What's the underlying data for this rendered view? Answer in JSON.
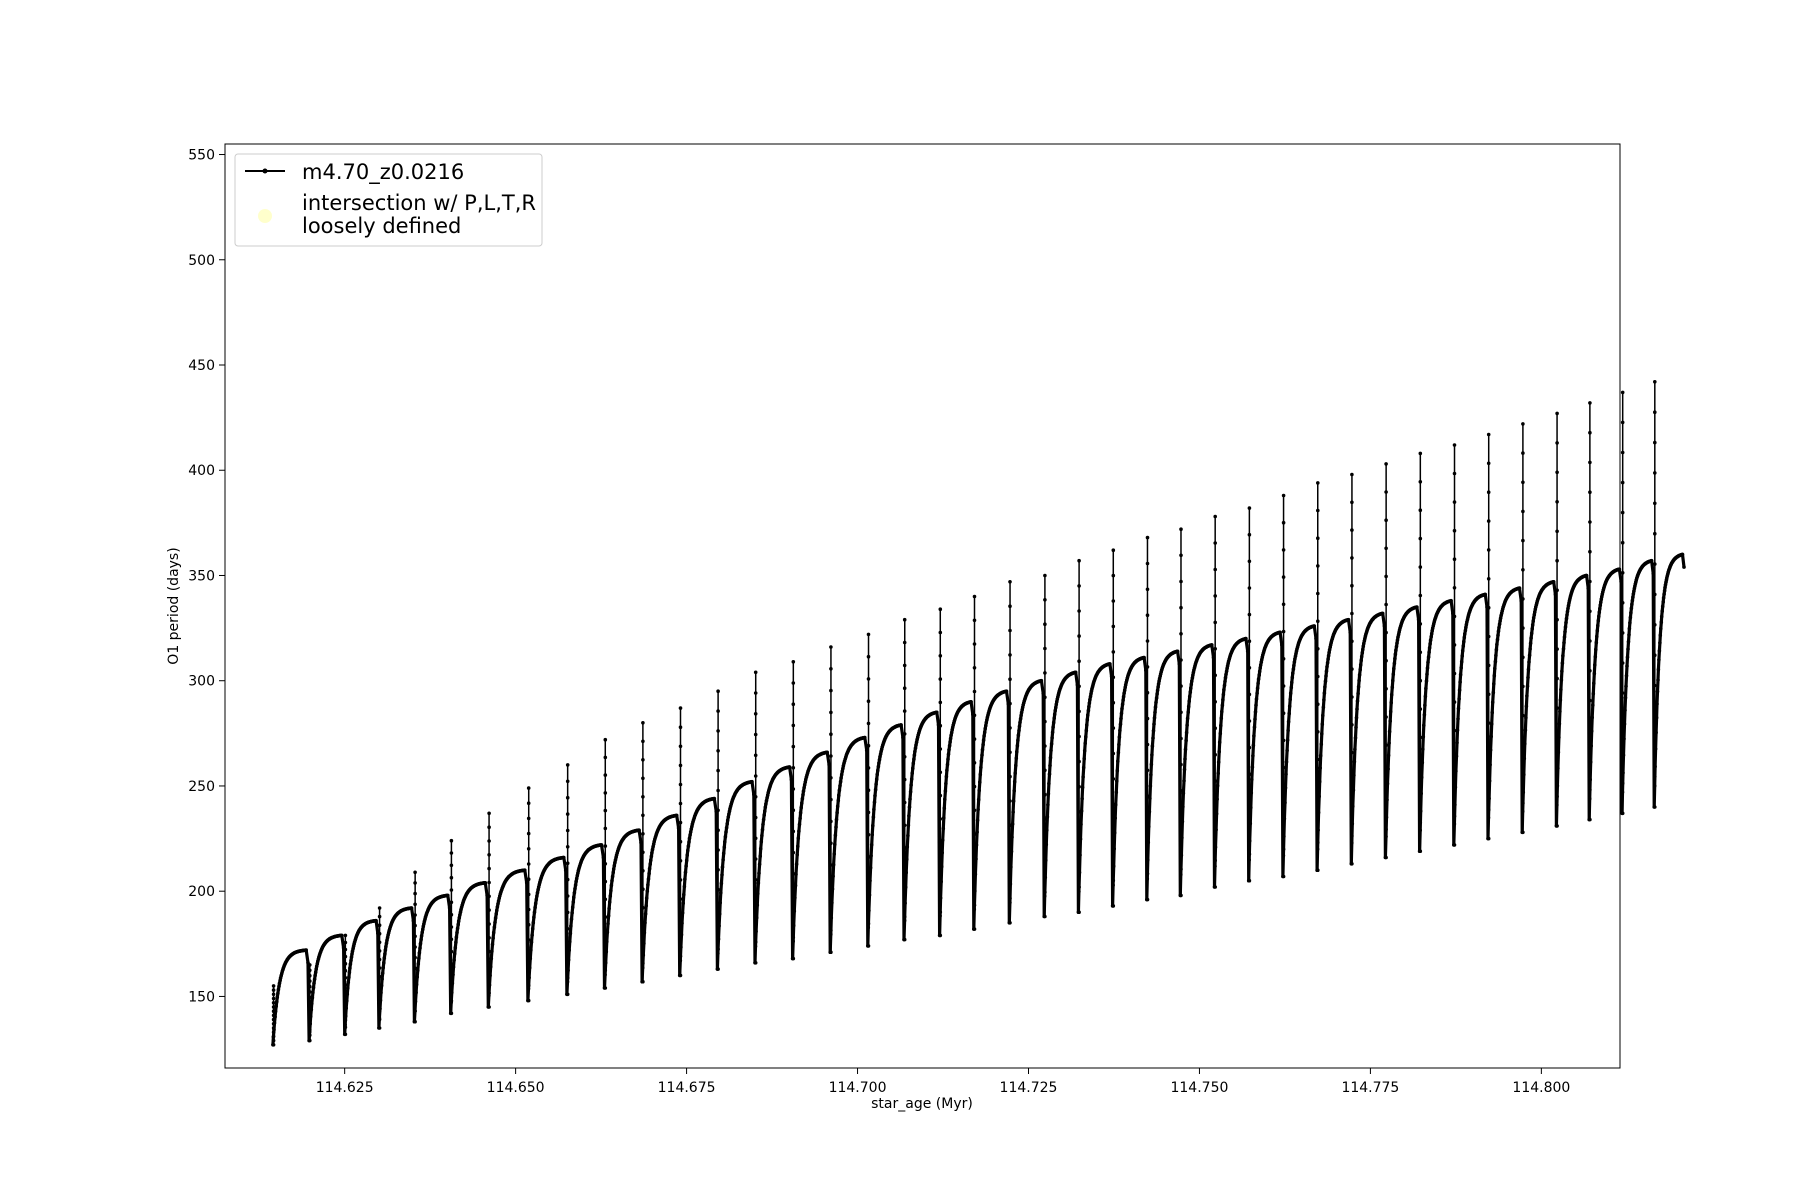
{
  "chart_data": {
    "type": "line",
    "title": "",
    "xlabel": "star_age (Myr)",
    "ylabel": "O1 period (days)",
    "xlim": [
      114.6075,
      114.8115
    ],
    "ylim": [
      116,
      555
    ],
    "x_ticks": [
      114.625,
      114.65,
      114.675,
      114.7,
      114.725,
      114.75,
      114.775,
      114.8
    ],
    "x_tick_labels": [
      "114.625",
      "114.650",
      "114.675",
      "114.700",
      "114.725",
      "114.750",
      "114.775",
      "114.800"
    ],
    "y_ticks": [
      150,
      200,
      250,
      300,
      350,
      400,
      450,
      500,
      550
    ],
    "y_tick_labels": [
      "150",
      "200",
      "250",
      "300",
      "350",
      "400",
      "450",
      "500",
      "550"
    ],
    "grid": false,
    "legend": {
      "placement": "upper-left",
      "entries": [
        {
          "label": "m4.70_z0.0216",
          "marker": "line-with-dots",
          "color": "#000000"
        },
        {
          "label_lines": [
            "intersection w/ P,L,T,R",
            "loosely defined"
          ],
          "marker": "circle",
          "color": "#ffffcc"
        }
      ]
    },
    "series": [
      {
        "name": "m4.70_z0.0216",
        "color": "#000000",
        "marker": "dot",
        "pulses": [
          {
            "t0": 114.6145,
            "t1": 114.6198,
            "min": 127,
            "max": 172,
            "spike": 155
          },
          {
            "t0": 114.6198,
            "t1": 114.625,
            "min": 129,
            "max": 179,
            "spike": 165
          },
          {
            "t0": 114.625,
            "t1": 114.63,
            "min": 132,
            "max": 186,
            "spike": 179
          },
          {
            "t0": 114.63,
            "t1": 114.6352,
            "min": 135,
            "max": 192,
            "spike": 192
          },
          {
            "t0": 114.6352,
            "t1": 114.6405,
            "min": 138,
            "max": 198,
            "spike": 209
          },
          {
            "t0": 114.6405,
            "t1": 114.646,
            "min": 142,
            "max": 204,
            "spike": 224
          },
          {
            "t0": 114.646,
            "t1": 114.6518,
            "min": 145,
            "max": 210,
            "spike": 237
          },
          {
            "t0": 114.6518,
            "t1": 114.6575,
            "min": 148,
            "max": 216,
            "spike": 249
          },
          {
            "t0": 114.6575,
            "t1": 114.663,
            "min": 151,
            "max": 222,
            "spike": 260
          },
          {
            "t0": 114.663,
            "t1": 114.6685,
            "min": 154,
            "max": 229,
            "spike": 272
          },
          {
            "t0": 114.6685,
            "t1": 114.674,
            "min": 157,
            "max": 236,
            "spike": 280
          },
          {
            "t0": 114.674,
            "t1": 114.6795,
            "min": 160,
            "max": 244,
            "spike": 287
          },
          {
            "t0": 114.6795,
            "t1": 114.685,
            "min": 163,
            "max": 252,
            "spike": 295
          },
          {
            "t0": 114.685,
            "t1": 114.6905,
            "min": 166,
            "max": 259,
            "spike": 304
          },
          {
            "t0": 114.6905,
            "t1": 114.696,
            "min": 168,
            "max": 266,
            "spike": 309
          },
          {
            "t0": 114.696,
            "t1": 114.7015,
            "min": 171,
            "max": 273,
            "spike": 316
          },
          {
            "t0": 114.7015,
            "t1": 114.7068,
            "min": 174,
            "max": 279,
            "spike": 322
          },
          {
            "t0": 114.7068,
            "t1": 114.712,
            "min": 177,
            "max": 285,
            "spike": 329
          },
          {
            "t0": 114.712,
            "t1": 114.717,
            "min": 179,
            "max": 290,
            "spike": 334
          },
          {
            "t0": 114.717,
            "t1": 114.7222,
            "min": 182,
            "max": 295,
            "spike": 340
          },
          {
            "t0": 114.7222,
            "t1": 114.7273,
            "min": 185,
            "max": 300,
            "spike": 347
          },
          {
            "t0": 114.7273,
            "t1": 114.7323,
            "min": 188,
            "max": 304,
            "spike": 350
          },
          {
            "t0": 114.7323,
            "t1": 114.7373,
            "min": 190,
            "max": 308,
            "spike": 357
          },
          {
            "t0": 114.7373,
            "t1": 114.7423,
            "min": 193,
            "max": 311,
            "spike": 362
          },
          {
            "t0": 114.7423,
            "t1": 114.7472,
            "min": 196,
            "max": 314,
            "spike": 368
          },
          {
            "t0": 114.7472,
            "t1": 114.7522,
            "min": 198,
            "max": 317,
            "spike": 372
          },
          {
            "t0": 114.7522,
            "t1": 114.7572,
            "min": 202,
            "max": 320,
            "spike": 378
          },
          {
            "t0": 114.7572,
            "t1": 114.7622,
            "min": 205,
            "max": 323,
            "spike": 382
          },
          {
            "t0": 114.7622,
            "t1": 114.7672,
            "min": 207,
            "max": 326,
            "spike": 388
          },
          {
            "t0": 114.7672,
            "t1": 114.7722,
            "min": 210,
            "max": 329,
            "spike": 394
          },
          {
            "t0": 114.7722,
            "t1": 114.7772,
            "min": 213,
            "max": 332,
            "spike": 398
          },
          {
            "t0": 114.7772,
            "t1": 114.7822,
            "min": 216,
            "max": 335,
            "spike": 403
          },
          {
            "t0": 114.7822,
            "t1": 114.7872,
            "min": 219,
            "max": 338,
            "spike": 408
          },
          {
            "t0": 114.7872,
            "t1": 114.7922,
            "min": 222,
            "max": 341,
            "spike": 412
          },
          {
            "t0": 114.7922,
            "t1": 114.7972,
            "min": 225,
            "max": 344,
            "spike": 417
          },
          {
            "t0": 114.7972,
            "t1": 114.8022,
            "min": 228,
            "max": 347,
            "spike": 422
          },
          {
            "t0": 114.8022,
            "t1": 114.807,
            "min": 231,
            "max": 350,
            "spike": 427
          },
          {
            "t0": 114.807,
            "t1": 114.8118,
            "min": 234,
            "max": 353,
            "spike": 432
          },
          {
            "t0": 114.8118,
            "t1": 114.8165,
            "min": 237,
            "max": 357,
            "spike": 437
          },
          {
            "t0": 114.8165,
            "t1": 114.821,
            "min": 240,
            "max": 360,
            "spike": 442
          }
        ]
      }
    ]
  }
}
